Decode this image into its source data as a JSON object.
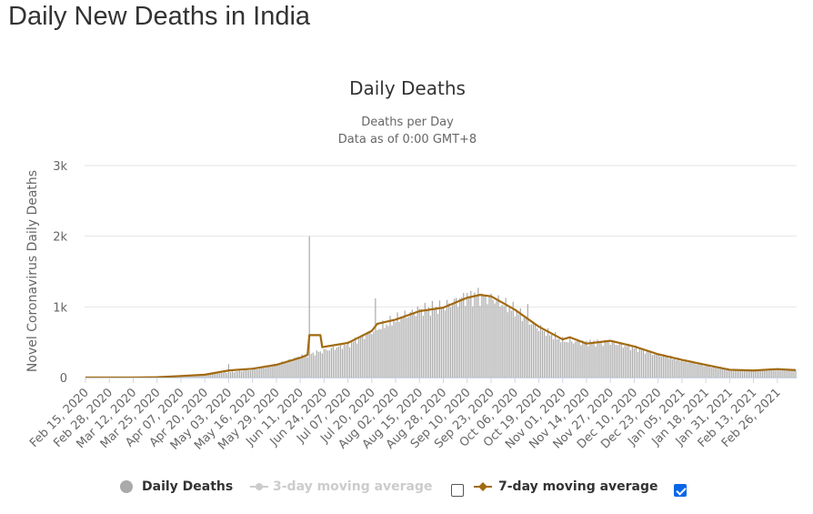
{
  "page": {
    "heading": "Daily New Deaths in India"
  },
  "chart_data": {
    "type": "bar",
    "title": "Daily Deaths",
    "subtitle_lines": [
      "Deaths per Day",
      "Data as of 0:00 GMT+8"
    ],
    "ylabel": "Novel Coronavirus Daily Deaths",
    "ylim": [
      0,
      3000
    ],
    "yticks": [
      0,
      1000,
      2000,
      3000
    ],
    "ytick_labels": [
      "0",
      "1k",
      "2k",
      "3k"
    ],
    "grid": true,
    "x_start": "2020-02-15",
    "x_end": "2021-03-08",
    "xtick_labels": [
      "Feb 15, 2020",
      "Feb 28, 2020",
      "Mar 12, 2020",
      "Mar 25, 2020",
      "Apr 07, 2020",
      "Apr 20, 2020",
      "May 03, 2020",
      "May 16, 2020",
      "May 29, 2020",
      "Jun 11, 2020",
      "Jun 24, 2020",
      "Jul 07, 2020",
      "Jul 20, 2020",
      "Aug 02, 2020",
      "Aug 15, 2020",
      "Aug 28, 2020",
      "Sep 10, 2020",
      "Sep 23, 2020",
      "Oct 06, 2020",
      "Oct 19, 2020",
      "Nov 01, 2020",
      "Nov 14, 2020",
      "Nov 27, 2020",
      "Dec 10, 2020",
      "Dec 23, 2020",
      "Jan 05, 2021",
      "Jan 18, 2021",
      "Jan 31, 2021",
      "Feb 13, 2021",
      "Feb 26, 2021"
    ],
    "series": [
      {
        "name": "Daily Deaths",
        "kind": "bar",
        "color": "#aaaaaa",
        "visible": true,
        "anchors": [
          [
            "2020-02-15",
            0
          ],
          [
            "2020-03-12",
            1
          ],
          [
            "2020-03-25",
            5
          ],
          [
            "2020-04-07",
            20
          ],
          [
            "2020-04-20",
            40
          ],
          [
            "2020-05-03",
            75
          ],
          [
            "2020-05-16",
            110
          ],
          [
            "2020-05-29",
            180
          ],
          [
            "2020-06-11",
            300
          ],
          [
            "2020-06-24",
            380
          ],
          [
            "2020-07-07",
            470
          ],
          [
            "2020-07-20",
            650
          ],
          [
            "2020-08-02",
            820
          ],
          [
            "2020-08-15",
            960
          ],
          [
            "2020-08-28",
            1000
          ],
          [
            "2020-09-10",
            1150
          ],
          [
            "2020-09-23",
            1130
          ],
          [
            "2020-10-06",
            950
          ],
          [
            "2020-10-19",
            700
          ],
          [
            "2020-11-01",
            520
          ],
          [
            "2020-11-14",
            500
          ],
          [
            "2020-11-27",
            500
          ],
          [
            "2020-12-10",
            420
          ],
          [
            "2020-12-23",
            320
          ],
          [
            "2021-01-05",
            240
          ],
          [
            "2021-01-18",
            170
          ],
          [
            "2021-01-31",
            120
          ],
          [
            "2021-02-13",
            100
          ],
          [
            "2021-02-26",
            110
          ],
          [
            "2021-03-08",
            110
          ]
        ],
        "spikes": [
          [
            "2020-05-03",
            190
          ],
          [
            "2020-06-16",
            2000
          ],
          [
            "2020-07-22",
            1120
          ],
          [
            "2020-09-16",
            1270
          ],
          [
            "2020-10-13",
            1040
          ]
        ]
      },
      {
        "name": "3-day moving average",
        "kind": "line",
        "color": "#cccccc",
        "visible": false
      },
      {
        "name": "7-day moving average",
        "kind": "line",
        "color": "#a26a10",
        "visible": true,
        "points": [
          [
            "2020-02-15",
            0
          ],
          [
            "2020-03-12",
            1
          ],
          [
            "2020-03-25",
            5
          ],
          [
            "2020-04-07",
            22
          ],
          [
            "2020-04-20",
            40
          ],
          [
            "2020-05-03",
            100
          ],
          [
            "2020-05-16",
            125
          ],
          [
            "2020-05-29",
            180
          ],
          [
            "2020-06-11",
            280
          ],
          [
            "2020-06-15",
            320
          ],
          [
            "2020-06-16",
            600
          ],
          [
            "2020-06-22",
            600
          ],
          [
            "2020-06-23",
            430
          ],
          [
            "2020-07-07",
            490
          ],
          [
            "2020-07-20",
            660
          ],
          [
            "2020-07-23",
            760
          ],
          [
            "2020-08-02",
            820
          ],
          [
            "2020-08-15",
            940
          ],
          [
            "2020-08-28",
            990
          ],
          [
            "2020-09-10",
            1130
          ],
          [
            "2020-09-17",
            1170
          ],
          [
            "2020-09-23",
            1150
          ],
          [
            "2020-10-06",
            960
          ],
          [
            "2020-10-19",
            720
          ],
          [
            "2020-11-01",
            540
          ],
          [
            "2020-11-05",
            570
          ],
          [
            "2020-11-14",
            480
          ],
          [
            "2020-11-27",
            520
          ],
          [
            "2020-12-10",
            440
          ],
          [
            "2020-12-23",
            330
          ],
          [
            "2021-01-05",
            250
          ],
          [
            "2021-01-18",
            180
          ],
          [
            "2021-01-31",
            110
          ],
          [
            "2021-02-13",
            100
          ],
          [
            "2021-02-26",
            120
          ],
          [
            "2021-03-08",
            105
          ]
        ]
      }
    ],
    "legend_position": "bottom"
  }
}
